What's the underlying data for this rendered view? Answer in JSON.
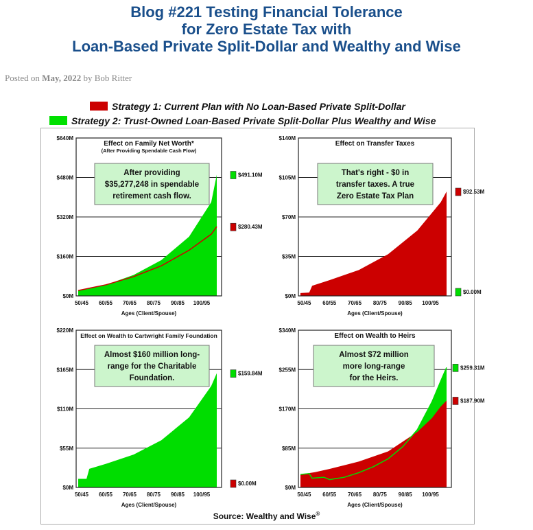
{
  "header": {
    "title_lines": [
      "Blog #221 Testing Financial Tolerance",
      "for Zero Estate Tax with",
      "Loan-Based Private Split-Dollar and Wealthy and Wise"
    ],
    "posted_on": "Posted on",
    "date": "May, 2022",
    "by": "by",
    "author": "Bob Ritter"
  },
  "legend": [
    {
      "label": "Strategy 1: Current Plan with No Loan-Based Private Split-Dollar",
      "color": "#cc0000"
    },
    {
      "label": "Strategy 2: Trust-Owned Loan-Based Private Split-Dollar Plus Wealthy and Wise",
      "color": "#00e000"
    }
  ],
  "source": {
    "text": "Source: Wealthy and Wise",
    "mark": "®"
  },
  "colors": {
    "green": "#00dd00",
    "red": "#cc0000",
    "callout_bg": "#ccf5cc",
    "title_blue": "#1a4f8b"
  },
  "chart_data": [
    {
      "type": "area",
      "title": "Effect on Family Net Worth*",
      "subtitle": "(After Providing Spendable Cash Flow)",
      "xlabel": "Ages (Client/Spouse)",
      "x_ticks": [
        "50/45",
        "60/55",
        "70/65",
        "80/75",
        "90/85",
        "100/95"
      ],
      "y_ticks": [
        "$0M",
        "$160M",
        "$320M",
        "$480M",
        "$640M"
      ],
      "ylim": [
        0,
        640
      ],
      "grid": true,
      "callout": [
        "After providing",
        "$35,277,248 in spendable",
        "retirement cash flow."
      ],
      "end_labels": [
        {
          "text": "$491.10M",
          "value": 491.1,
          "color": "#00dd00"
        },
        {
          "text": "$280.43M",
          "value": 280.43,
          "color": "#cc0000"
        }
      ],
      "series": [
        {
          "name": "Strategy 2: Trust-Owned Loan-Based Private Split-Dollar Plus Wealthy and Wise",
          "style": "area",
          "color": "#00dd00",
          "values": [
            [
              0,
              22
            ],
            [
              10,
              45
            ],
            [
              20,
              85
            ],
            [
              30,
              145
            ],
            [
              40,
              240
            ],
            [
              48,
              380
            ],
            [
              50,
              491.1
            ]
          ]
        },
        {
          "name": "Strategy 1: Current Plan with No Loan-Based Private Split-Dollar",
          "style": "line",
          "color": "#cc0000",
          "values": [
            [
              0,
              22
            ],
            [
              10,
              45
            ],
            [
              20,
              78
            ],
            [
              30,
              122
            ],
            [
              40,
              185
            ],
            [
              48,
              250
            ],
            [
              50,
              280.43
            ]
          ]
        }
      ]
    },
    {
      "type": "area",
      "title": "Effect on Transfer Taxes",
      "xlabel": "Ages (Client/Spouse)",
      "x_ticks": [
        "50/45",
        "60/55",
        "70/65",
        "80/75",
        "90/85",
        "100/95"
      ],
      "y_ticks": [
        "$0M",
        "$35M",
        "$70M",
        "$105M",
        "$140M"
      ],
      "ylim": [
        0,
        140
      ],
      "grid": true,
      "callout": [
        "That's right - $0 in",
        "transfer taxes. A true",
        "Zero Estate Tax Plan"
      ],
      "end_labels": [
        {
          "text": "$92.53M",
          "value": 92.53,
          "color": "#cc0000"
        },
        {
          "text": "$0.00M",
          "value": 0,
          "color": "#00dd00"
        }
      ],
      "series": [
        {
          "name": "Strategy 1: Current Plan with No Loan-Based Private Split-Dollar",
          "style": "area",
          "color": "#cc0000",
          "values": [
            [
              0,
              2.5
            ],
            [
              3,
              3
            ],
            [
              4,
              9
            ],
            [
              10,
              14
            ],
            [
              20,
              23
            ],
            [
              30,
              37
            ],
            [
              40,
              58
            ],
            [
              48,
              83
            ],
            [
              50,
              92.53
            ]
          ]
        },
        {
          "name": "Strategy 2: Trust-Owned Loan-Based Private Split-Dollar Plus Wealthy and Wise",
          "style": "area",
          "color": "#00dd00",
          "values": [
            [
              0,
              0
            ],
            [
              50,
              0
            ]
          ]
        }
      ]
    },
    {
      "type": "area",
      "title": "Effect on Wealth to Cartwright Family Foundation",
      "xlabel": "Ages (Client/Spouse)",
      "x_ticks": [
        "50/45",
        "60/55",
        "70/65",
        "80/75",
        "90/85",
        "100/95"
      ],
      "y_ticks": [
        "$0M",
        "$55M",
        "$110M",
        "$165M",
        "$220M"
      ],
      "ylim": [
        0,
        220
      ],
      "grid": true,
      "callout": [
        "Almost $160 million long-",
        "range for the Charitable",
        "Foundation."
      ],
      "end_labels": [
        {
          "text": "$159.84M",
          "value": 159.84,
          "color": "#00dd00"
        },
        {
          "text": "$0.00M",
          "value": 0,
          "color": "#cc0000"
        }
      ],
      "series": [
        {
          "name": "Strategy 2: Trust-Owned Loan-Based Private Split-Dollar Plus Wealthy and Wise",
          "style": "area",
          "color": "#00dd00",
          "values": [
            [
              0,
              12
            ],
            [
              3,
              12
            ],
            [
              4,
              26
            ],
            [
              10,
              33
            ],
            [
              20,
              46
            ],
            [
              30,
              66
            ],
            [
              40,
              98
            ],
            [
              48,
              142
            ],
            [
              50,
              159.84
            ]
          ]
        },
        {
          "name": "Strategy 1: Current Plan with No Loan-Based Private Split-Dollar",
          "style": "area",
          "color": "#cc0000",
          "values": [
            [
              0,
              0
            ],
            [
              50,
              0
            ]
          ]
        }
      ]
    },
    {
      "type": "area",
      "title": "Effect on Wealth to Heirs",
      "xlabel": "Ages (Client/Spouse)",
      "x_ticks": [
        "50/45",
        "60/55",
        "70/65",
        "80/75",
        "90/85",
        "100/95"
      ],
      "y_ticks": [
        "$0M",
        "$85M",
        "$170M",
        "$255M",
        "$340M"
      ],
      "ylim": [
        0,
        340
      ],
      "grid": true,
      "callout": [
        "Almost $72 million",
        "more long-range",
        "for the Heirs."
      ],
      "end_labels": [
        {
          "text": "$259.31M",
          "value": 259.31,
          "color": "#00dd00"
        },
        {
          "text": "$187.90M",
          "value": 187.9,
          "color": "#cc0000"
        }
      ],
      "series": [
        {
          "name": "Strategy 2: Trust-Owned Loan-Based Private Split-Dollar Plus Wealthy and Wise",
          "style": "area",
          "color": "#00dd00",
          "values": [
            [
              0,
              28
            ],
            [
              3,
              30
            ],
            [
              4,
              20
            ],
            [
              8,
              22
            ],
            [
              10,
              17
            ],
            [
              15,
              22
            ],
            [
              20,
              32
            ],
            [
              25,
              45
            ],
            [
              30,
              62
            ],
            [
              35,
              88
            ],
            [
              40,
              125
            ],
            [
              45,
              185
            ],
            [
              48,
              230
            ],
            [
              50,
              259.31
            ]
          ]
        },
        {
          "name": "Strategy 1: Current Plan with No Loan-Based Private Split-Dollar",
          "style": "area",
          "color": "#cc0000",
          "values": [
            [
              0,
              28
            ],
            [
              5,
              33
            ],
            [
              10,
              40
            ],
            [
              20,
              56
            ],
            [
              30,
              78
            ],
            [
              40,
              120
            ],
            [
              45,
              150
            ],
            [
              48,
              175
            ],
            [
              50,
              187.9
            ]
          ]
        }
      ]
    }
  ]
}
